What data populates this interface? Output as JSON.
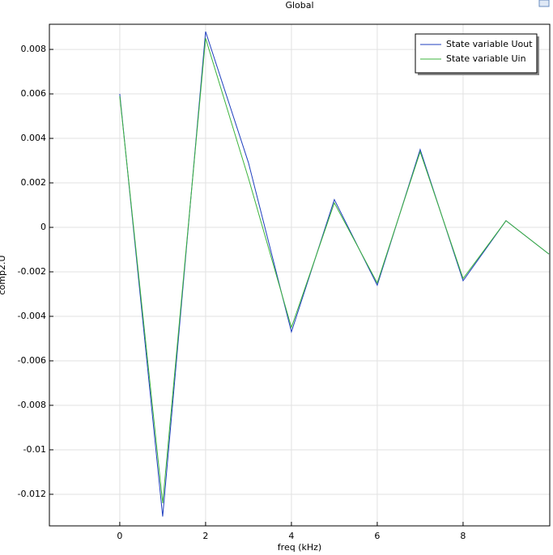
{
  "chart_data": {
    "type": "line",
    "title": "Global",
    "x_label": "freq (kHz)",
    "y_label": "comp2.U",
    "x": [
      0,
      1,
      2,
      3,
      4,
      5,
      6,
      7,
      8,
      9,
      10
    ],
    "series": [
      {
        "name": "State variable Uout",
        "color": "#1f3fbf",
        "values": [
          0.006,
          -0.013,
          0.0088,
          0.0029,
          -0.0047,
          0.00125,
          -0.0026,
          0.0035,
          -0.0024,
          0.0003,
          -0.0012
        ]
      },
      {
        "name": "State variable Uin",
        "color": "#3cb43c",
        "values": [
          0.0059,
          -0.0124,
          0.0085,
          0.0022,
          -0.0045,
          0.0011,
          -0.0025,
          0.0034,
          -0.0023,
          0.0003,
          -0.0012
        ]
      }
    ],
    "xlim": [
      -1.64,
      10.02
    ],
    "ylim": [
      -0.01342,
      0.00913
    ],
    "xticks": [
      0,
      2,
      4,
      6,
      8
    ],
    "yticks": [
      0.008,
      0.006,
      0.004,
      0.002,
      0,
      -0.002,
      -0.004,
      -0.006,
      -0.008,
      -0.01,
      -0.012
    ],
    "grid": true,
    "legend": "upper right"
  }
}
